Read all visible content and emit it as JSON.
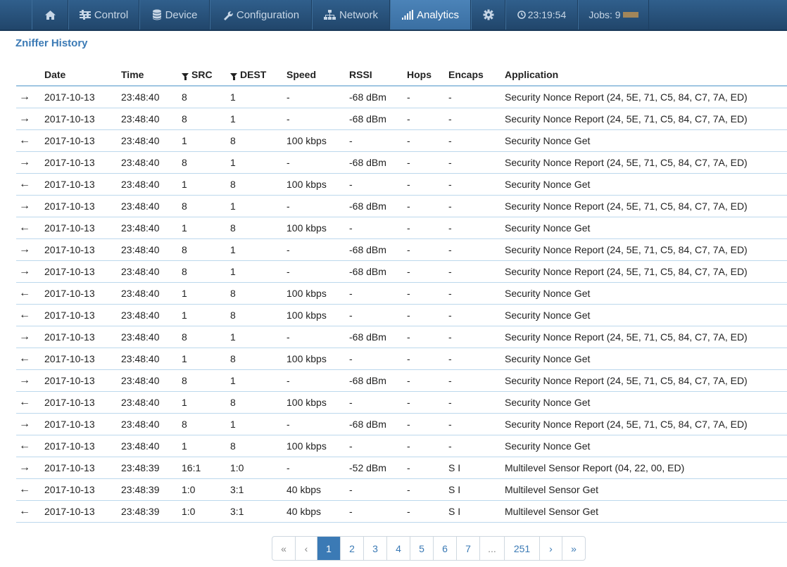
{
  "nav": {
    "home_icon": "home-icon",
    "control": "Control",
    "device": "Device",
    "configuration": "Configuration",
    "network": "Network",
    "analytics": "Analytics",
    "settings_icon": "gear-icon",
    "clock": "23:19:54",
    "jobs": "Jobs: 9"
  },
  "page": {
    "title": "Zniffer History"
  },
  "table": {
    "headers": {
      "date": "Date",
      "time": "Time",
      "src": "SRC",
      "dest": "DEST",
      "speed": "Speed",
      "rssi": "RSSI",
      "hops": "Hops",
      "encaps": "Encaps",
      "application": "Application"
    },
    "rows": [
      {
        "dir": "→",
        "date": "2017-10-13",
        "time": "23:48:40",
        "src": "8",
        "dest": "1",
        "speed": "-",
        "rssi": "-68 dBm",
        "hops": "-",
        "encaps": "-",
        "app": "Security Nonce Report (24, 5E, 71, C5, 84, C7, 7A, ED)"
      },
      {
        "dir": "→",
        "date": "2017-10-13",
        "time": "23:48:40",
        "src": "8",
        "dest": "1",
        "speed": "-",
        "rssi": "-68 dBm",
        "hops": "-",
        "encaps": "-",
        "app": "Security Nonce Report (24, 5E, 71, C5, 84, C7, 7A, ED)"
      },
      {
        "dir": "←",
        "date": "2017-10-13",
        "time": "23:48:40",
        "src": "1",
        "dest": "8",
        "speed": "100 kbps",
        "rssi": "-",
        "hops": "-",
        "encaps": "-",
        "app": "Security Nonce Get"
      },
      {
        "dir": "→",
        "date": "2017-10-13",
        "time": "23:48:40",
        "src": "8",
        "dest": "1",
        "speed": "-",
        "rssi": "-68 dBm",
        "hops": "-",
        "encaps": "-",
        "app": "Security Nonce Report (24, 5E, 71, C5, 84, C7, 7A, ED)"
      },
      {
        "dir": "←",
        "date": "2017-10-13",
        "time": "23:48:40",
        "src": "1",
        "dest": "8",
        "speed": "100 kbps",
        "rssi": "-",
        "hops": "-",
        "encaps": "-",
        "app": "Security Nonce Get"
      },
      {
        "dir": "→",
        "date": "2017-10-13",
        "time": "23:48:40",
        "src": "8",
        "dest": "1",
        "speed": "-",
        "rssi": "-68 dBm",
        "hops": "-",
        "encaps": "-",
        "app": "Security Nonce Report (24, 5E, 71, C5, 84, C7, 7A, ED)"
      },
      {
        "dir": "←",
        "date": "2017-10-13",
        "time": "23:48:40",
        "src": "1",
        "dest": "8",
        "speed": "100 kbps",
        "rssi": "-",
        "hops": "-",
        "encaps": "-",
        "app": "Security Nonce Get"
      },
      {
        "dir": "→",
        "date": "2017-10-13",
        "time": "23:48:40",
        "src": "8",
        "dest": "1",
        "speed": "-",
        "rssi": "-68 dBm",
        "hops": "-",
        "encaps": "-",
        "app": "Security Nonce Report (24, 5E, 71, C5, 84, C7, 7A, ED)"
      },
      {
        "dir": "→",
        "date": "2017-10-13",
        "time": "23:48:40",
        "src": "8",
        "dest": "1",
        "speed": "-",
        "rssi": "-68 dBm",
        "hops": "-",
        "encaps": "-",
        "app": "Security Nonce Report (24, 5E, 71, C5, 84, C7, 7A, ED)"
      },
      {
        "dir": "←",
        "date": "2017-10-13",
        "time": "23:48:40",
        "src": "1",
        "dest": "8",
        "speed": "100 kbps",
        "rssi": "-",
        "hops": "-",
        "encaps": "-",
        "app": "Security Nonce Get"
      },
      {
        "dir": "←",
        "date": "2017-10-13",
        "time": "23:48:40",
        "src": "1",
        "dest": "8",
        "speed": "100 kbps",
        "rssi": "-",
        "hops": "-",
        "encaps": "-",
        "app": "Security Nonce Get"
      },
      {
        "dir": "→",
        "date": "2017-10-13",
        "time": "23:48:40",
        "src": "8",
        "dest": "1",
        "speed": "-",
        "rssi": "-68 dBm",
        "hops": "-",
        "encaps": "-",
        "app": "Security Nonce Report (24, 5E, 71, C5, 84, C7, 7A, ED)"
      },
      {
        "dir": "←",
        "date": "2017-10-13",
        "time": "23:48:40",
        "src": "1",
        "dest": "8",
        "speed": "100 kbps",
        "rssi": "-",
        "hops": "-",
        "encaps": "-",
        "app": "Security Nonce Get"
      },
      {
        "dir": "→",
        "date": "2017-10-13",
        "time": "23:48:40",
        "src": "8",
        "dest": "1",
        "speed": "-",
        "rssi": "-68 dBm",
        "hops": "-",
        "encaps": "-",
        "app": "Security Nonce Report (24, 5E, 71, C5, 84, C7, 7A, ED)"
      },
      {
        "dir": "←",
        "date": "2017-10-13",
        "time": "23:48:40",
        "src": "1",
        "dest": "8",
        "speed": "100 kbps",
        "rssi": "-",
        "hops": "-",
        "encaps": "-",
        "app": "Security Nonce Get"
      },
      {
        "dir": "→",
        "date": "2017-10-13",
        "time": "23:48:40",
        "src": "8",
        "dest": "1",
        "speed": "-",
        "rssi": "-68 dBm",
        "hops": "-",
        "encaps": "-",
        "app": "Security Nonce Report (24, 5E, 71, C5, 84, C7, 7A, ED)"
      },
      {
        "dir": "←",
        "date": "2017-10-13",
        "time": "23:48:40",
        "src": "1",
        "dest": "8",
        "speed": "100 kbps",
        "rssi": "-",
        "hops": "-",
        "encaps": "-",
        "app": "Security Nonce Get"
      },
      {
        "dir": "→",
        "date": "2017-10-13",
        "time": "23:48:39",
        "src": "16:1",
        "dest": "1:0",
        "speed": "-",
        "rssi": "-52 dBm",
        "hops": "-",
        "encaps": "S I",
        "app": "Multilevel Sensor Report (04, 22, 00, ED)"
      },
      {
        "dir": "←",
        "date": "2017-10-13",
        "time": "23:48:39",
        "src": "1:0",
        "dest": "3:1",
        "speed": "40 kbps",
        "rssi": "-",
        "hops": "-",
        "encaps": "S I",
        "app": "Multilevel Sensor Get"
      },
      {
        "dir": "←",
        "date": "2017-10-13",
        "time": "23:48:39",
        "src": "1:0",
        "dest": "3:1",
        "speed": "40 kbps",
        "rssi": "-",
        "hops": "-",
        "encaps": "S I",
        "app": "Multilevel Sensor Get"
      }
    ]
  },
  "pagination": {
    "items": [
      "«",
      "‹",
      "1",
      "2",
      "3",
      "4",
      "5",
      "6",
      "7",
      "...",
      "251",
      "›",
      "»"
    ],
    "current": "1"
  }
}
